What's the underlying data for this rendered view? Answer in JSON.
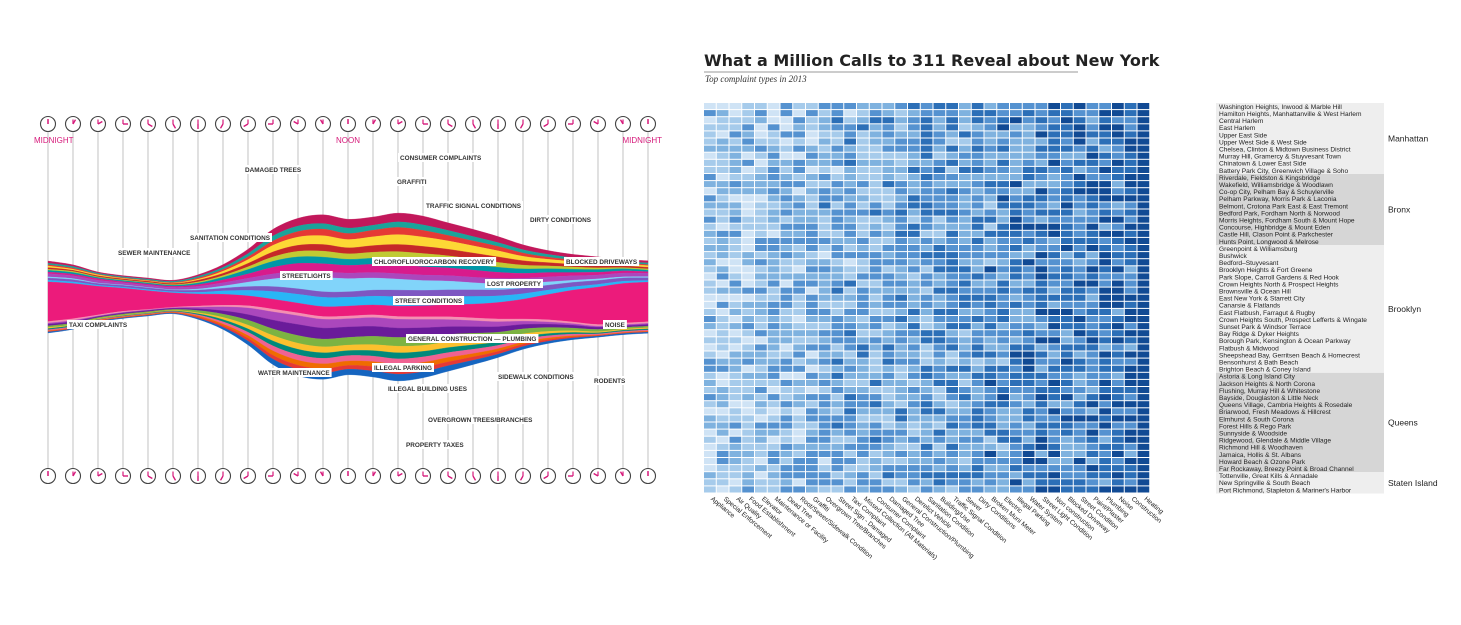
{
  "chart_data": [
    {
      "type": "area",
      "title": "",
      "x_labels": [
        {
          "label": "MIDNIGHT",
          "hour": 0
        },
        {
          "label": "NOON",
          "hour": 12
        },
        {
          "label": "MIDNIGHT",
          "hour": 24
        }
      ],
      "hours": [
        0,
        1,
        2,
        3,
        4,
        5,
        6,
        7,
        8,
        9,
        10,
        11,
        12,
        13,
        14,
        15,
        16,
        17,
        18,
        19,
        20,
        21,
        22,
        23,
        24
      ],
      "stream_labels": [
        "CONSUMER COMPLAINTS",
        "DAMAGED TREES",
        "GRAFFITI",
        "TRAFFIC SIGNAL CONDITIONS",
        "DIRTY CONDITIONS",
        "SANITATION CONDITIONS",
        "SEWER MAINTENANCE",
        "CHLOROFLUOROCARBON RECOVERY",
        "BLOCKED DRIVEWAYS",
        "STREETLIGHTS",
        "LOST PROPERTY",
        "STREET CONDITIONS",
        "TAXI COMPLAINTS",
        "NOISE",
        "GENERAL CONSTRUCTION — PLUMBING",
        "WATER MAINTENANCE",
        "ILLEGAL PARKING",
        "ILLEGAL BUILDING USES",
        "SIDEWALK CONDITIONS",
        "RODENTS",
        "OVERGROWN TREES/BRANCHES",
        "PROPERTY TAXES"
      ],
      "series": [
        {
          "name": "DAMAGED TREES",
          "color": "#c2185b",
          "values": [
            4,
            3,
            2,
            2,
            2,
            2,
            3,
            5,
            8,
            12,
            14,
            16,
            16,
            15,
            16,
            16,
            14,
            13,
            11,
            9,
            7,
            6,
            5,
            4,
            4
          ]
        },
        {
          "name": "",
          "color": "#1aa39a",
          "values": [
            3,
            3,
            2,
            2,
            2,
            2,
            3,
            4,
            6,
            9,
            10,
            10,
            10,
            9,
            10,
            10,
            9,
            8,
            7,
            6,
            5,
            4,
            4,
            3,
            3
          ]
        },
        {
          "name": "CONSUMER COMPLAINTS",
          "color": "#e53935",
          "values": [
            2,
            2,
            1,
            1,
            1,
            1,
            2,
            3,
            5,
            8,
            10,
            12,
            11,
            12,
            13,
            12,
            10,
            9,
            8,
            6,
            4,
            3,
            3,
            2,
            2
          ]
        },
        {
          "name": "GRAFFITI",
          "color": "#fdd835",
          "values": [
            3,
            2,
            2,
            1,
            1,
            1,
            2,
            4,
            7,
            12,
            15,
            16,
            15,
            16,
            18,
            17,
            15,
            13,
            11,
            8,
            6,
            5,
            4,
            3,
            3
          ]
        },
        {
          "name": "TRAFFIC SIGNAL CONDITIONS",
          "color": "#c62828",
          "values": [
            3,
            2,
            2,
            2,
            2,
            2,
            3,
            4,
            6,
            9,
            11,
            12,
            11,
            12,
            13,
            13,
            12,
            11,
            10,
            8,
            6,
            5,
            4,
            3,
            3
          ]
        },
        {
          "name": "DIRTY CONDITIONS",
          "color": "#c0ca33",
          "values": [
            2,
            2,
            1,
            1,
            1,
            1,
            2,
            3,
            5,
            8,
            10,
            11,
            10,
            11,
            12,
            12,
            11,
            10,
            9,
            7,
            5,
            4,
            3,
            2,
            2
          ]
        },
        {
          "name": "SANITATION CONDITIONS",
          "color": "#0097a7",
          "values": [
            3,
            3,
            2,
            2,
            2,
            2,
            3,
            5,
            8,
            11,
            12,
            12,
            11,
            11,
            12,
            12,
            11,
            10,
            9,
            8,
            7,
            6,
            5,
            4,
            3
          ]
        },
        {
          "name": "CHLOROFLUOROCARBON RECOVERY",
          "color": "#d81b8c",
          "values": [
            3,
            3,
            3,
            2,
            2,
            2,
            3,
            5,
            8,
            12,
            14,
            15,
            14,
            15,
            16,
            15,
            14,
            13,
            11,
            9,
            8,
            6,
            5,
            4,
            3
          ]
        },
        {
          "name": "BLOCKED DRIVEWAYS",
          "color": "#ab47bc",
          "values": [
            6,
            5,
            5,
            4,
            4,
            4,
            5,
            6,
            7,
            9,
            10,
            10,
            10,
            10,
            10,
            10,
            10,
            10,
            10,
            9,
            9,
            8,
            7,
            7,
            6
          ]
        },
        {
          "name": "STREETLIGHTS",
          "color": "#81d4fa",
          "values": [
            2,
            2,
            1,
            1,
            1,
            1,
            2,
            4,
            8,
            14,
            22,
            26,
            24,
            22,
            20,
            18,
            16,
            13,
            11,
            9,
            6,
            4,
            3,
            2,
            2
          ]
        },
        {
          "name": "LOST PROPERTY",
          "color": "#7e57c2",
          "values": [
            4,
            4,
            3,
            3,
            3,
            3,
            4,
            5,
            7,
            9,
            10,
            10,
            10,
            11,
            12,
            12,
            12,
            12,
            11,
            10,
            9,
            8,
            7,
            6,
            5
          ]
        },
        {
          "name": "STREET CONDITIONS",
          "color": "#29b6f6",
          "values": [
            3,
            3,
            2,
            2,
            2,
            2,
            3,
            6,
            10,
            14,
            16,
            17,
            16,
            16,
            17,
            16,
            15,
            14,
            12,
            10,
            8,
            6,
            5,
            4,
            3
          ]
        },
        {
          "name": "NOISE",
          "color": "#ec1b7b",
          "values": [
            72,
            64,
            52,
            42,
            34,
            26,
            22,
            20,
            18,
            18,
            18,
            18,
            18,
            18,
            19,
            20,
            22,
            25,
            30,
            36,
            46,
            58,
            68,
            72,
            72
          ]
        },
        {
          "name": "TAXI COMPLAINTS",
          "color": "#f48fb1",
          "values": [
            3,
            3,
            2,
            2,
            1,
            1,
            2,
            3,
            4,
            5,
            5,
            5,
            5,
            5,
            5,
            5,
            5,
            5,
            5,
            4,
            4,
            3,
            3,
            3,
            3
          ]
        },
        {
          "name": "GENERAL CONSTRUCTION — PLUMBING",
          "color": "#ab47bc",
          "values": [
            2,
            2,
            1,
            1,
            1,
            1,
            3,
            7,
            12,
            15,
            16,
            16,
            15,
            16,
            16,
            15,
            13,
            11,
            9,
            6,
            4,
            3,
            2,
            2,
            2
          ]
        },
        {
          "name": "WATER MAINTENANCE",
          "color": "#6a1b9a",
          "values": [
            3,
            3,
            2,
            2,
            2,
            2,
            3,
            6,
            10,
            16,
            20,
            20,
            19,
            18,
            17,
            16,
            14,
            12,
            10,
            8,
            6,
            5,
            4,
            3,
            3
          ]
        },
        {
          "name": "ILLEGAL PARKING",
          "color": "#7cb342",
          "values": [
            3,
            3,
            2,
            2,
            2,
            2,
            4,
            6,
            9,
            12,
            14,
            14,
            14,
            15,
            16,
            16,
            14,
            13,
            11,
            9,
            7,
            5,
            4,
            3,
            3
          ]
        },
        {
          "name": "ILLEGAL BUILDING USES",
          "color": "#fbc02d",
          "values": [
            2,
            1,
            1,
            1,
            1,
            1,
            2,
            4,
            7,
            10,
            11,
            11,
            10,
            11,
            12,
            11,
            10,
            8,
            7,
            5,
            4,
            3,
            2,
            2,
            2
          ]
        },
        {
          "name": "SIDEWALK CONDITIONS",
          "color": "#00897b",
          "values": [
            2,
            2,
            1,
            1,
            1,
            1,
            2,
            4,
            6,
            9,
            10,
            10,
            9,
            10,
            11,
            10,
            9,
            8,
            6,
            5,
            4,
            3,
            2,
            2,
            2
          ]
        },
        {
          "name": "RODENTS",
          "color": "#f06292",
          "values": [
            2,
            2,
            1,
            1,
            1,
            1,
            2,
            4,
            6,
            9,
            10,
            10,
            10,
            10,
            10,
            10,
            9,
            8,
            6,
            5,
            4,
            3,
            2,
            2,
            2
          ]
        },
        {
          "name": "OVERGROWN TREES/BRANCHES",
          "color": "#ef6c00",
          "values": [
            1,
            1,
            1,
            1,
            1,
            1,
            2,
            3,
            5,
            8,
            9,
            9,
            8,
            9,
            10,
            9,
            8,
            6,
            5,
            4,
            3,
            2,
            1,
            1,
            1
          ]
        },
        {
          "name": "",
          "color": "#e53935",
          "values": [
            1,
            1,
            1,
            1,
            1,
            1,
            2,
            3,
            5,
            7,
            8,
            8,
            7,
            8,
            8,
            8,
            7,
            6,
            5,
            4,
            3,
            2,
            1,
            1,
            1
          ]
        },
        {
          "name": "PROPERTY TAXES",
          "color": "#1565c0",
          "values": [
            2,
            1,
            1,
            1,
            1,
            1,
            2,
            4,
            7,
            10,
            11,
            11,
            10,
            11,
            12,
            11,
            10,
            8,
            6,
            5,
            4,
            3,
            2,
            2,
            2
          ]
        }
      ]
    },
    {
      "type": "heatmap",
      "title": "What a Million Calls to 311 Reveal about New York",
      "subtitle": "Top complaint types in 2013",
      "columns": [
        "Appliance",
        "Special Enforcement",
        "Air Quality",
        "Food Establishment",
        "Elevator",
        "Maintenance or Facility",
        "Dead Tree",
        "Root/Sewer/Sidewalk Condition",
        "Graffiti",
        "Overgrown Tree/Branches",
        "Street Sign - Damaged",
        "Taxi Complaint",
        "Missed Collection (All Materials)",
        "Consumer Complaint",
        "Damaged Tree",
        "General Construction/Plumbing",
        "Derelict Vehicle",
        "Sanitation Condition",
        "Building/Use",
        "Traffic Signal Condition",
        "Sewer",
        "Dirty Conditions",
        "Broken Muni Meter",
        "Electric",
        "Illegal Parking",
        "Water System",
        "Street Light Condition",
        "Non construction",
        "Blocked Driveway",
        "Street Condition",
        "Paint/Plaster",
        "Plumbing",
        "Noise",
        "Construction",
        "Heating"
      ],
      "boroughs": [
        {
          "name": "Manhattan",
          "rows": [
            "Washington Heights, Inwood & Marble Hill",
            "Hamilton Heights, Manhattanville & West Harlem",
            "Central Harlem",
            "East Harlem",
            "Upper East Side",
            "Upper West Side & West Side",
            "Chelsea, Clinton & Midtown Business District",
            "Murray Hill, Gramercy & Stuyvesant Town",
            "Chinatown & Lower East Side",
            "Battery Park City, Greenwich Village & Soho"
          ]
        },
        {
          "name": "Bronx",
          "rows": [
            "Riverdale, Fieldston & Kingsbridge",
            "Wakefield, Williamsbridge & Woodlawn",
            "Co-op City, Pelham Bay & Schuylerville",
            "Pelham Parkway, Morris Park & Laconia",
            "Belmont, Crotona Park East & East Tremont",
            "Bedford Park, Fordham North & Norwood",
            "Morris Heights, Fordham South & Mount Hope",
            "Concourse, Highbridge & Mount Eden",
            "Castle Hill, Clason Point & Parkchester",
            "Hunts Point, Longwood & Melrose"
          ]
        },
        {
          "name": "Brooklyn",
          "rows": [
            "Greenpoint & Williamsburg",
            "Bushwick",
            "Bedford–Stuyvesant",
            "Brooklyn Heights & Fort Greene",
            "Park Slope, Carroll Gardens & Red Hook",
            "Crown Heights North & Prospect Heights",
            "Brownsville & Ocean Hill",
            "East New York & Starrett City",
            "Canarsie & Flatlands",
            "East Flatbush, Farragut & Rugby",
            "Crown Heights South, Prospect Lefferts & Wingate",
            "Sunset Park & Windsor Terrace",
            "Bay Ridge & Dyker Heights",
            "Borough Park, Kensington & Ocean Parkway",
            "Flatbush & Midwood",
            "Sheepshead Bay, Gerritsen Beach & Homecrest",
            "Bensonhurst & Bath Beach",
            "Brighton Beach & Coney Island"
          ]
        },
        {
          "name": "Queens",
          "rows": [
            "Astoria & Long Island City",
            "Jackson Heights & North Corona",
            "Flushing, Murray Hill & Whitestone",
            "Bayside, Douglaston & Little Neck",
            "Queens Village, Cambria Heights & Rosedale",
            "Briarwood, Fresh Meadows & Hillcrest",
            "Elmhurst & South Corona",
            "Forest Hills & Rego Park",
            "Sunnyside & Woodside",
            "Ridgewood, Glendale & Middle Village",
            "Richmond Hill & Woodhaven",
            "Jamaica, Hollis & St. Albans",
            "Howard Beach & Ozone Park",
            "Far Rockaway, Breezy Point & Broad Channel"
          ]
        },
        {
          "name": "Staten Island",
          "rows": [
            "Tottenville, Great Kills & Annadale",
            "New Springville & South Beach",
            "Port Richmond, Stapleton & Mariner's Harbor"
          ]
        }
      ],
      "color_scale": [
        "#cfe3f5",
        "#a6cbeb",
        "#7fb2df",
        "#5592d0",
        "#2c6fb7",
        "#114a94"
      ]
    }
  ]
}
